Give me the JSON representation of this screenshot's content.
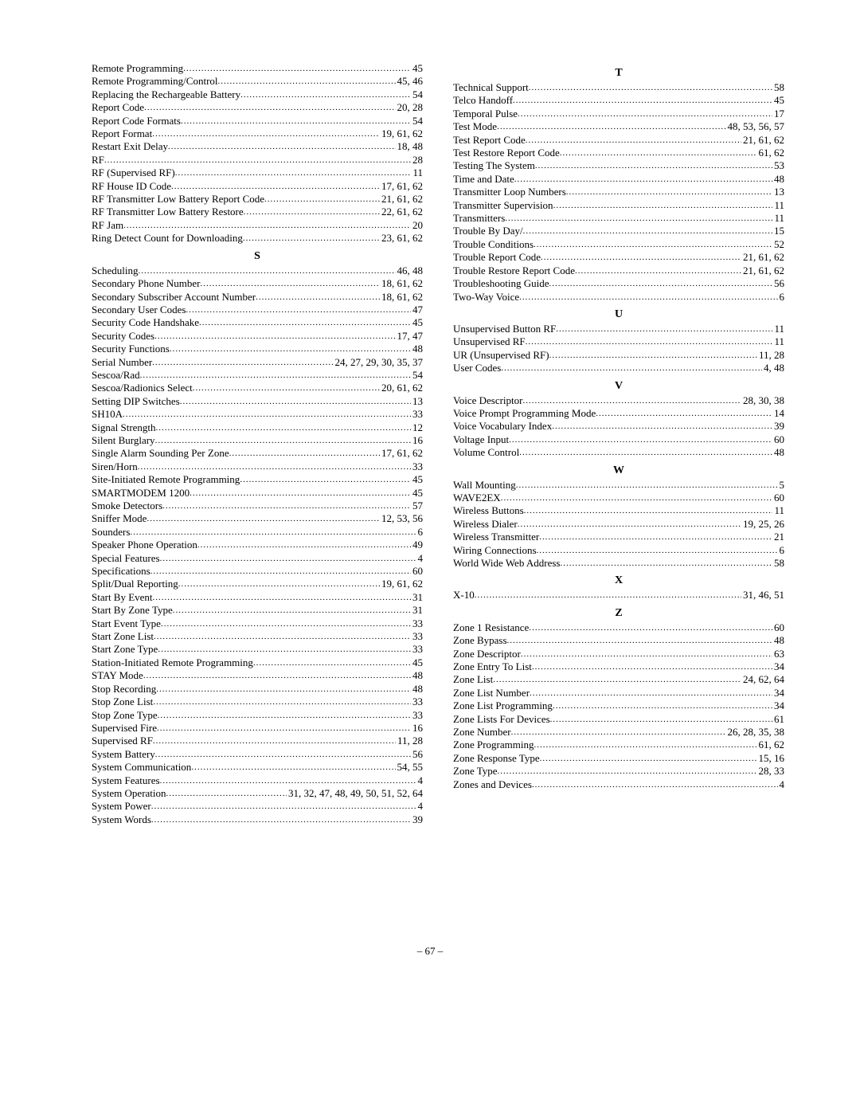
{
  "pageNumber": "– 67 –",
  "leftColumn": [
    {
      "type": "entry",
      "term": "Remote Programming",
      "pages": "45"
    },
    {
      "type": "entry",
      "term": "Remote Programming/Control",
      "pages": "45, 46"
    },
    {
      "type": "entry",
      "term": "Replacing the Rechargeable Battery",
      "pages": "54"
    },
    {
      "type": "entry",
      "term": "Report Code",
      "pages": "20, 28"
    },
    {
      "type": "entry",
      "term": "Report Code Formats",
      "pages": "54"
    },
    {
      "type": "entry",
      "term": "Report Format",
      "pages": "19, 61, 62"
    },
    {
      "type": "entry",
      "term": "Restart Exit Delay",
      "pages": "18, 48"
    },
    {
      "type": "entry",
      "term": "RF",
      "pages": "28"
    },
    {
      "type": "entry",
      "term": "RF (Supervised RF)",
      "pages": "11"
    },
    {
      "type": "entry",
      "term": "RF House ID Code",
      "pages": "17, 61, 62"
    },
    {
      "type": "entry",
      "term": "RF Transmitter Low Battery Report Code",
      "pages": "21, 61, 62"
    },
    {
      "type": "entry",
      "term": "RF Transmitter Low Battery Restore",
      "pages": "22, 61, 62"
    },
    {
      "type": "entry",
      "term": "RF Jam",
      "pages": "20"
    },
    {
      "type": "entry",
      "term": "Ring Detect Count for Downloading",
      "pages": "23, 61, 62"
    },
    {
      "type": "heading",
      "label": "S"
    },
    {
      "type": "entry",
      "term": "Scheduling",
      "pages": "46, 48"
    },
    {
      "type": "entry",
      "term": "Secondary Phone Number",
      "pages": "18, 61, 62"
    },
    {
      "type": "entry",
      "term": "Secondary Subscriber Account Number",
      "pages": "18, 61, 62"
    },
    {
      "type": "entry",
      "term": "Secondary User Codes",
      "pages": "47"
    },
    {
      "type": "entry",
      "term": "Security Code Handshake",
      "pages": "45"
    },
    {
      "type": "entry",
      "term": "Security Codes",
      "pages": "17, 47"
    },
    {
      "type": "entry",
      "term": "Security Functions",
      "pages": "48"
    },
    {
      "type": "entry",
      "term": "Serial Number",
      "pages": "24, 27, 29, 30, 35, 37"
    },
    {
      "type": "entry",
      "term": "Sescoa/Rad",
      "pages": "54"
    },
    {
      "type": "entry",
      "term": "Sescoa/Radionics Select",
      "pages": "20, 61, 62"
    },
    {
      "type": "entry",
      "term": "Setting DIP Switches",
      "pages": "13"
    },
    {
      "type": "entry",
      "term": "SH10A",
      "pages": "33"
    },
    {
      "type": "entry",
      "term": "Signal Strength",
      "pages": "12"
    },
    {
      "type": "entry",
      "term": "Silent Burglary",
      "pages": "16"
    },
    {
      "type": "entry",
      "term": "Single Alarm Sounding Per Zone",
      "pages": "17, 61, 62"
    },
    {
      "type": "entry",
      "term": "Siren/Horn",
      "pages": "33"
    },
    {
      "type": "entry",
      "term": "Site-Initiated Remote Programming",
      "pages": "45"
    },
    {
      "type": "entry",
      "term": "SMARTMODEM 1200",
      "pages": "45"
    },
    {
      "type": "entry",
      "term": "Smoke Detectors",
      "pages": "57"
    },
    {
      "type": "entry",
      "term": "Sniffer Mode",
      "pages": "12, 53, 56"
    },
    {
      "type": "entry",
      "term": "Sounders",
      "pages": "6"
    },
    {
      "type": "entry",
      "term": "Speaker Phone Operation",
      "pages": "49"
    },
    {
      "type": "entry",
      "term": "Special Features",
      "pages": "4"
    },
    {
      "type": "entry",
      "term": "Specifications",
      "pages": "60"
    },
    {
      "type": "entry",
      "term": "Split/Dual Reporting",
      "pages": "19, 61, 62"
    },
    {
      "type": "entry",
      "term": "Start By Event",
      "pages": "31"
    },
    {
      "type": "entry",
      "term": "Start By Zone Type",
      "pages": "31"
    },
    {
      "type": "entry",
      "term": "Start Event Type",
      "pages": "33"
    },
    {
      "type": "entry",
      "term": "Start Zone List",
      "pages": "33"
    },
    {
      "type": "entry",
      "term": "Start Zone Type",
      "pages": "33"
    },
    {
      "type": "entry",
      "term": "Station-Initiated Remote Programming",
      "pages": "45"
    },
    {
      "type": "entry",
      "term": "STAY Mode",
      "pages": "48"
    },
    {
      "type": "entry",
      "term": "Stop Recording",
      "pages": "48"
    },
    {
      "type": "entry",
      "term": "Stop Zone List",
      "pages": "33"
    },
    {
      "type": "entry",
      "term": "Stop Zone Type",
      "pages": "33"
    },
    {
      "type": "entry",
      "term": "Supervised Fire",
      "pages": "16"
    },
    {
      "type": "entry",
      "term": "Supervised RF",
      "pages": "11, 28"
    },
    {
      "type": "entry",
      "term": "System Battery",
      "pages": "56"
    },
    {
      "type": "entry",
      "term": "System Communication",
      "pages": "54, 55"
    },
    {
      "type": "entry",
      "term": "System Features",
      "pages": "4"
    },
    {
      "type": "entry",
      "term": "System Operation",
      "pages": "31, 32, 47, 48, 49, 50, 51, 52, 64"
    },
    {
      "type": "entry",
      "term": "System Power",
      "pages": "4"
    },
    {
      "type": "entry",
      "term": "System Words",
      "pages": "39"
    }
  ],
  "rightColumn": [
    {
      "type": "heading",
      "label": "T"
    },
    {
      "type": "entry",
      "term": "Technical Support",
      "pages": "58"
    },
    {
      "type": "entry",
      "term": "Telco Handoff",
      "pages": "45"
    },
    {
      "type": "entry",
      "term": "Temporal Pulse",
      "pages": "17"
    },
    {
      "type": "entry",
      "term": "Test Mode",
      "pages": "48, 53, 56, 57"
    },
    {
      "type": "entry",
      "term": "Test Report Code",
      "pages": "21, 61, 62"
    },
    {
      "type": "entry",
      "term": "Test Restore Report Code",
      "pages": "61, 62"
    },
    {
      "type": "entry",
      "term": "Testing The System",
      "pages": "53"
    },
    {
      "type": "entry",
      "term": "Time and Date",
      "pages": "48"
    },
    {
      "type": "entry",
      "term": "Transmitter Loop Numbers",
      "pages": "13"
    },
    {
      "type": "entry",
      "term": "Transmitter Supervision",
      "pages": "11"
    },
    {
      "type": "entry",
      "term": "Transmitters",
      "pages": "11"
    },
    {
      "type": "entry",
      "term": "Trouble By Day/",
      "pages": "15"
    },
    {
      "type": "entry",
      "term": "Trouble Conditions",
      "pages": "52"
    },
    {
      "type": "entry",
      "term": "Trouble Report Code",
      "pages": "21, 61, 62"
    },
    {
      "type": "entry",
      "term": "Trouble Restore Report Code",
      "pages": "21, 61, 62"
    },
    {
      "type": "entry",
      "term": "Troubleshooting Guide",
      "pages": "56"
    },
    {
      "type": "entry",
      "term": "Two-Way Voice",
      "pages": "6"
    },
    {
      "type": "heading",
      "label": "U"
    },
    {
      "type": "entry",
      "term": "Unsupervised Button RF",
      "pages": "11"
    },
    {
      "type": "entry",
      "term": "Unsupervised RF",
      "pages": "11"
    },
    {
      "type": "entry",
      "term": "UR (Unsupervised RF)",
      "pages": "11, 28"
    },
    {
      "type": "entry",
      "term": "User Codes",
      "pages": "4, 48"
    },
    {
      "type": "heading",
      "label": "V"
    },
    {
      "type": "entry",
      "term": "Voice Descriptor",
      "pages": "28, 30, 38"
    },
    {
      "type": "entry",
      "term": "Voice Prompt Programming Mode",
      "pages": "14"
    },
    {
      "type": "entry",
      "term": "Voice Vocabulary Index",
      "pages": "39"
    },
    {
      "type": "entry",
      "term": "Voltage Input",
      "pages": "60"
    },
    {
      "type": "entry",
      "term": "Volume Control",
      "pages": "48"
    },
    {
      "type": "heading",
      "label": "W"
    },
    {
      "type": "entry",
      "term": "Wall Mounting",
      "pages": "5"
    },
    {
      "type": "entry",
      "term": "WAVE2EX",
      "pages": "60"
    },
    {
      "type": "entry",
      "term": "Wireless Buttons",
      "pages": "11"
    },
    {
      "type": "entry",
      "term": "Wireless Dialer",
      "pages": "19, 25, 26"
    },
    {
      "type": "entry",
      "term": "Wireless Transmitter",
      "pages": "21"
    },
    {
      "type": "entry",
      "term": "Wiring Connections",
      "pages": "6"
    },
    {
      "type": "entry",
      "term": "World Wide Web Address",
      "pages": "58"
    },
    {
      "type": "heading",
      "label": "X"
    },
    {
      "type": "entry",
      "term": "X-10",
      "pages": "31, 46, 51"
    },
    {
      "type": "heading",
      "label": "Z"
    },
    {
      "type": "entry",
      "term": "Zone 1 Resistance",
      "pages": "60"
    },
    {
      "type": "entry",
      "term": "Zone Bypass",
      "pages": "48"
    },
    {
      "type": "entry",
      "term": "Zone Descriptor",
      "pages": "63"
    },
    {
      "type": "entry",
      "term": "Zone Entry To List",
      "pages": "34"
    },
    {
      "type": "entry",
      "term": "Zone List",
      "pages": "24, 62, 64"
    },
    {
      "type": "entry",
      "term": "Zone List Number",
      "pages": "34"
    },
    {
      "type": "entry",
      "term": "Zone List Programming",
      "pages": "34"
    },
    {
      "type": "entry",
      "term": "Zone Lists For Devices",
      "pages": "61"
    },
    {
      "type": "entry",
      "term": "Zone Number",
      "pages": "26, 28, 35, 38"
    },
    {
      "type": "entry",
      "term": "Zone Programming",
      "pages": "61, 62"
    },
    {
      "type": "entry",
      "term": "Zone Response Type",
      "pages": "15, 16"
    },
    {
      "type": "entry",
      "term": "Zone Type",
      "pages": "28, 33"
    },
    {
      "type": "entry",
      "term": "Zones and Devices",
      "pages": "4"
    }
  ]
}
